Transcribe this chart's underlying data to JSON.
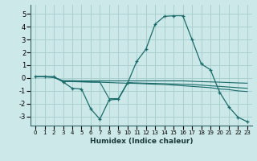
{
  "xlabel": "Humidex (Indice chaleur)",
  "ylabel": "",
  "xlim": [
    -0.5,
    23.5
  ],
  "ylim": [
    -3.7,
    5.7
  ],
  "yticks": [
    -3,
    -2,
    -1,
    0,
    1,
    2,
    3,
    4,
    5
  ],
  "xticks": [
    0,
    1,
    2,
    3,
    4,
    5,
    6,
    7,
    8,
    9,
    10,
    11,
    12,
    13,
    14,
    15,
    16,
    17,
    18,
    19,
    20,
    21,
    22,
    23
  ],
  "background_color": "#cce8e8",
  "grid_color": "#aad0d0",
  "line_color": "#1a6b6b",
  "series": [
    {
      "x": [
        0,
        1,
        2,
        3,
        4,
        5,
        6,
        7,
        8,
        9,
        10,
        11,
        12,
        13,
        14,
        15,
        16,
        17,
        18,
        19,
        20,
        21,
        22,
        23
      ],
      "y": [
        0.1,
        0.1,
        0.1,
        -0.3,
        -0.8,
        -0.85,
        -2.4,
        -3.2,
        -1.7,
        -1.65,
        -0.4,
        1.3,
        2.25,
        4.2,
        4.8,
        4.85,
        4.85,
        3.0,
        1.1,
        0.65,
        -1.1,
        -2.25,
        -3.05,
        -3.4
      ],
      "marker": true
    },
    {
      "x": [
        0,
        1,
        2,
        3,
        4,
        5,
        6,
        7,
        8,
        9,
        10,
        11,
        12,
        13,
        14,
        15,
        16,
        17,
        18,
        19,
        20,
        21,
        22,
        23
      ],
      "y": [
        0.1,
        0.1,
        0.05,
        -0.25,
        -0.25,
        -0.28,
        -0.3,
        -0.32,
        -0.35,
        -0.38,
        -0.4,
        -0.42,
        -0.45,
        -0.48,
        -0.5,
        -0.55,
        -0.6,
        -0.65,
        -0.7,
        -0.75,
        -0.85,
        -0.9,
        -1.0,
        -1.05
      ],
      "marker": false
    },
    {
      "x": [
        0,
        1,
        2,
        3,
        4,
        5,
        6,
        7,
        8,
        9,
        10,
        11,
        12,
        13,
        14,
        15,
        16,
        17,
        18,
        19,
        20,
        21,
        22,
        23
      ],
      "y": [
        0.1,
        0.1,
        0.05,
        -0.2,
        -0.2,
        -0.22,
        -0.22,
        -0.22,
        -0.22,
        -0.22,
        -0.22,
        -0.22,
        -0.22,
        -0.22,
        -0.22,
        -0.22,
        -0.22,
        -0.25,
        -0.28,
        -0.3,
        -0.32,
        -0.35,
        -0.38,
        -0.4
      ],
      "marker": false
    },
    {
      "x": [
        0,
        1,
        2,
        3,
        4,
        5,
        6,
        7,
        8,
        9,
        10,
        11,
        12,
        13,
        14,
        15,
        16,
        17,
        18,
        19,
        20,
        21,
        22,
        23
      ],
      "y": [
        0.12,
        0.12,
        0.1,
        -0.28,
        -0.28,
        -0.3,
        -0.32,
        -0.32,
        -1.6,
        -1.6,
        -0.35,
        -0.38,
        -0.4,
        -0.42,
        -0.44,
        -0.46,
        -0.48,
        -0.5,
        -0.55,
        -0.6,
        -0.65,
        -0.7,
        -0.75,
        -0.8
      ],
      "marker": false
    }
  ]
}
